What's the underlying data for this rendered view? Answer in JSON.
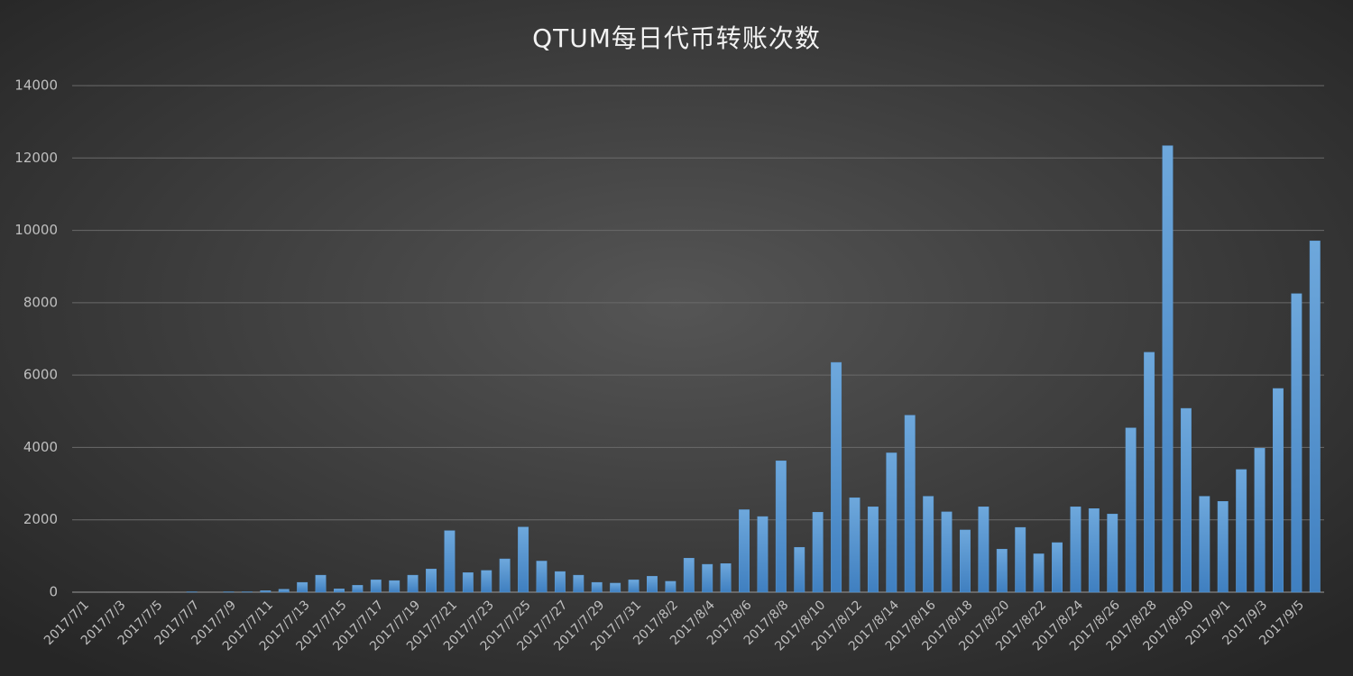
{
  "chart_data": {
    "type": "bar",
    "title": "QTUM每日代币转账次数",
    "categories": [
      "2017/7/1",
      null,
      "2017/7/3",
      null,
      "2017/7/5",
      null,
      "2017/7/7",
      null,
      "2017/7/9",
      null,
      "2017/7/11",
      null,
      "2017/7/13",
      null,
      "2017/7/15",
      null,
      "2017/7/17",
      null,
      "2017/7/19",
      null,
      "2017/7/21",
      null,
      "2017/7/23",
      null,
      "2017/7/25",
      null,
      "2017/7/27",
      null,
      "2017/7/29",
      null,
      "2017/7/31",
      null,
      "2017/8/2",
      null,
      "2017/8/4",
      null,
      "2017/8/6",
      null,
      "2017/8/8",
      null,
      "2017/8/10",
      null,
      "2017/8/12",
      null,
      "2017/8/14",
      null,
      "2017/8/16",
      null,
      "2017/8/18",
      null,
      "2017/8/20",
      null,
      "2017/8/22",
      null,
      "2017/8/24",
      null,
      "2017/8/26",
      null,
      "2017/8/28",
      null,
      "2017/8/30",
      null,
      "2017/9/1",
      null,
      "2017/9/3",
      null,
      "2017/9/5",
      null
    ],
    "values": [
      0,
      0,
      0,
      0,
      0,
      0,
      10,
      0,
      10,
      10,
      40,
      80,
      270,
      470,
      90,
      190,
      340,
      320,
      470,
      640,
      1700,
      540,
      600,
      920,
      1800,
      860,
      570,
      470,
      270,
      250,
      340,
      440,
      300,
      940,
      770,
      790,
      2280,
      2090,
      3630,
      1240,
      2210,
      6350,
      2610,
      2360,
      3850,
      4890,
      2650,
      2220,
      1720,
      2360,
      1190,
      1790,
      1060,
      1370,
      2360,
      2310,
      2160,
      4540,
      6630,
      12340,
      5080,
      2650,
      2510,
      3390,
      3980,
      5630,
      8250,
      9710
    ],
    "color": "#5b9bd5",
    "ylim": [
      0,
      14000
    ],
    "yticks": [
      0,
      2000,
      4000,
      6000,
      8000,
      10000,
      12000,
      14000
    ],
    "grid": true
  }
}
